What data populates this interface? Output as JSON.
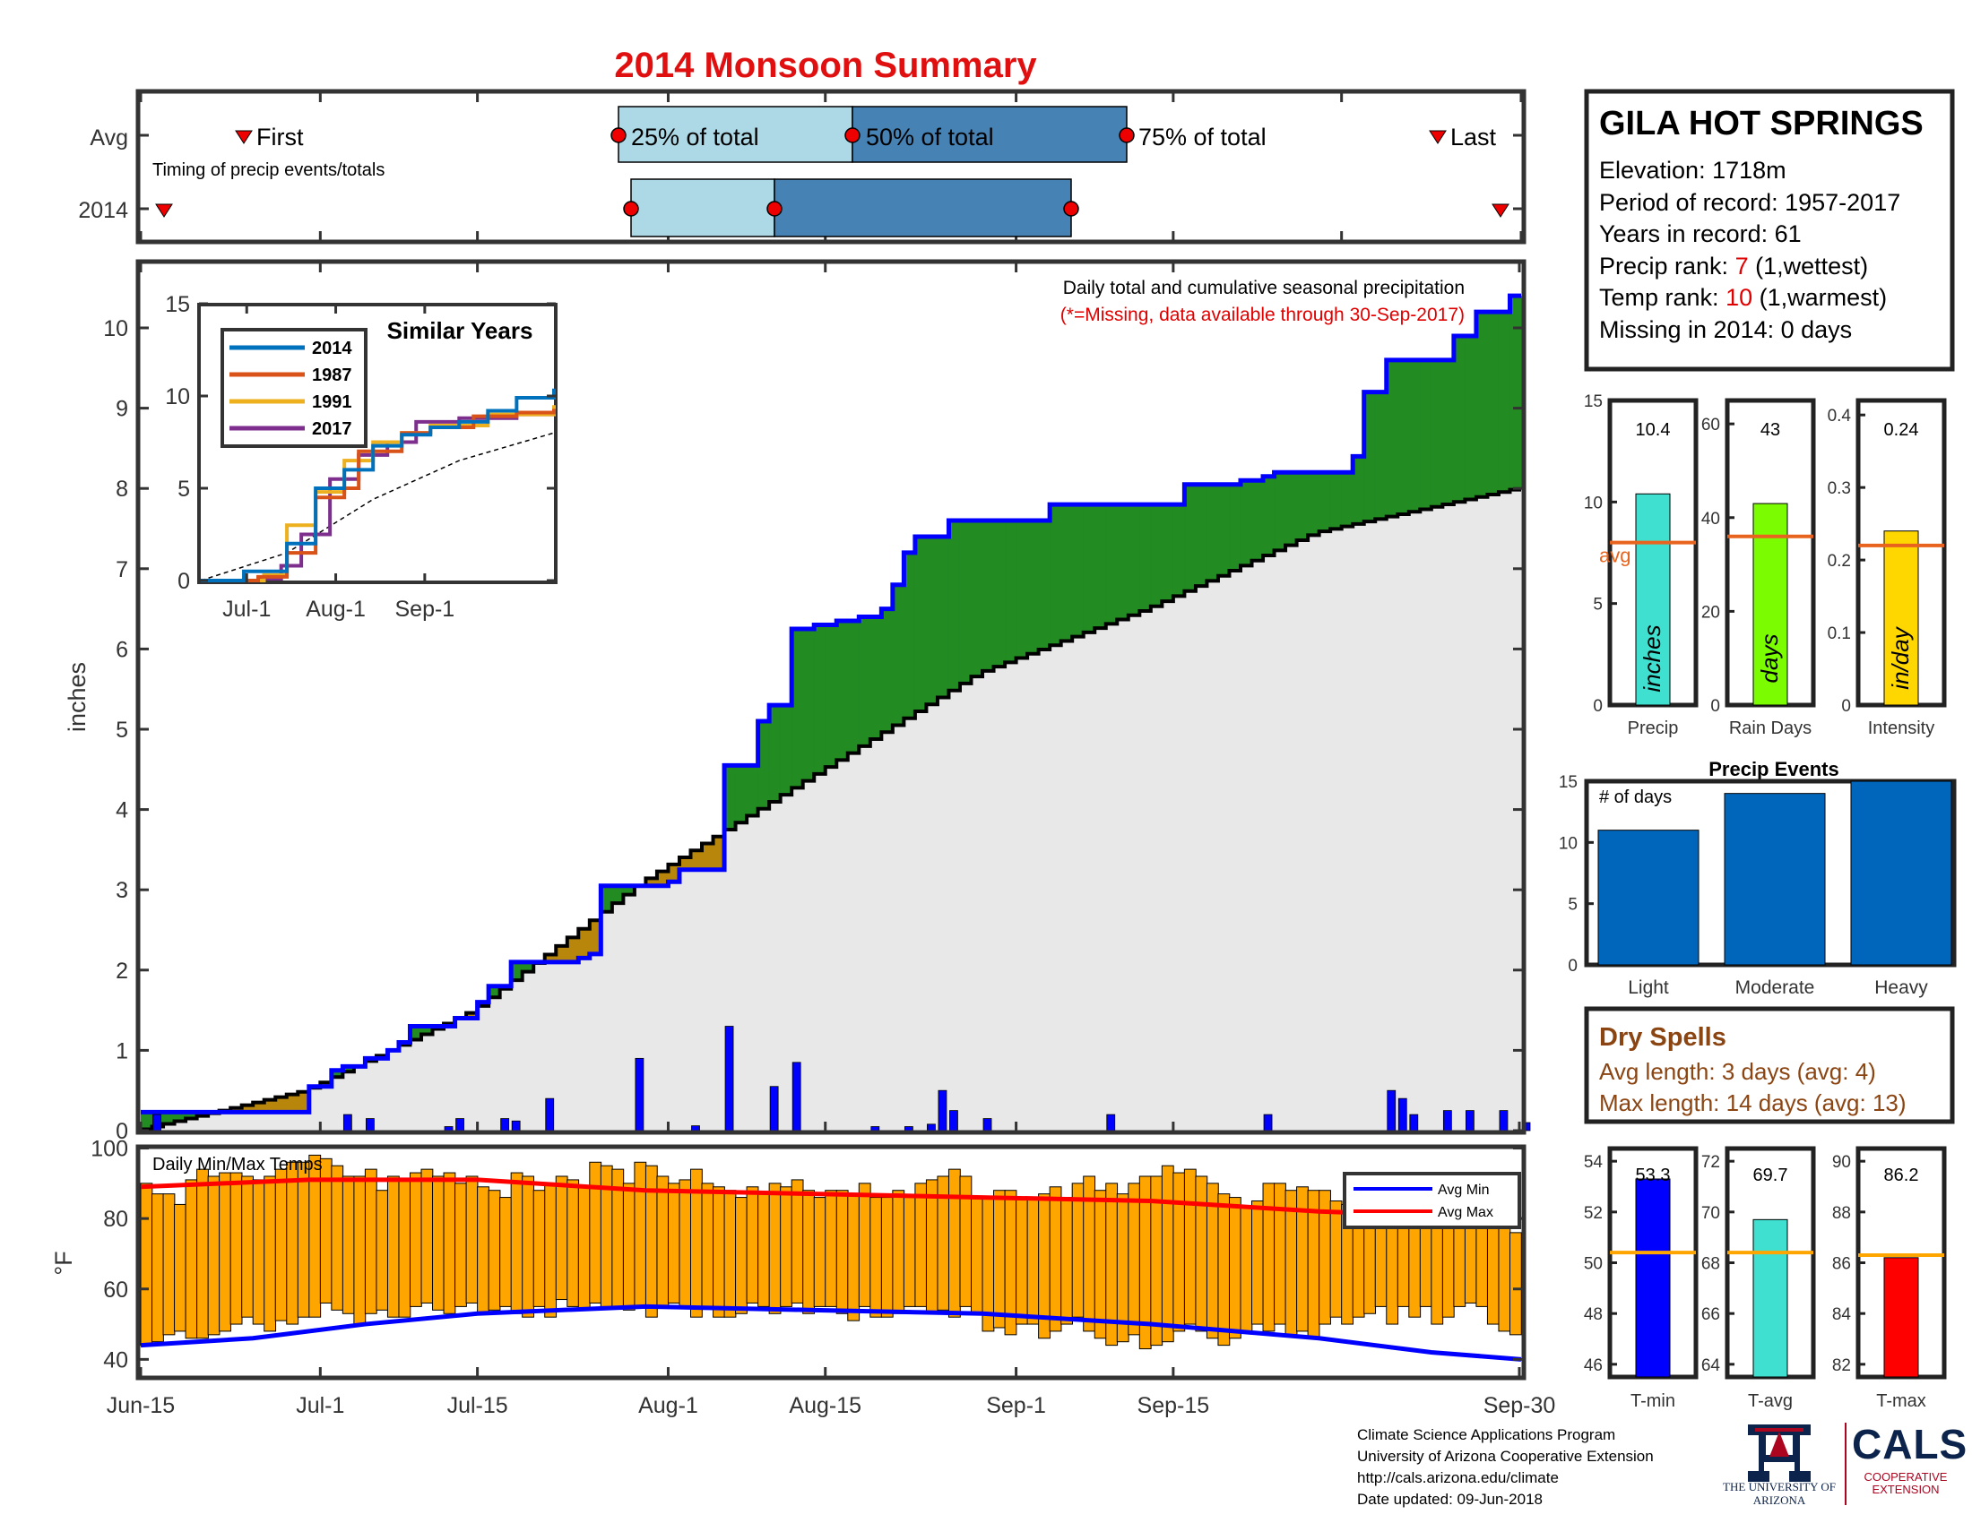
{
  "title": "2014 Monsoon Summary",
  "colors": {
    "title": "#e01010",
    "green": "#228b22",
    "blue": "#0000ff",
    "gray_fill": "#e8e8e8",
    "tan": "#b8860b",
    "light_blue": "#add8e6",
    "steel_blue": "#4682b4",
    "bar_blue": "#0066bb",
    "orange_temp": "#ffa500",
    "avg_line": "#e8641e",
    "temp_avg_line": "#ffa500",
    "rank_red": "#e00000",
    "brown": "#8b4513"
  },
  "timing": {
    "label": "Timing of precip events/totals",
    "row_avg": "Avg",
    "row_year": "2014",
    "first": "First",
    "last": "Last",
    "p25": "25% of total",
    "p50": "50% of total",
    "p75": "75% of total"
  },
  "station": {
    "name": "GILA HOT SPRINGS",
    "elevation": "Elevation: 1718m",
    "period": "Period of record: 1957-2017",
    "years": "Years in record: 61",
    "precip_rank_label": "Precip rank:",
    "precip_rank": "7",
    "precip_rank_note": "(1,wettest)",
    "temp_rank_label": "Temp rank:",
    "temp_rank": "10",
    "temp_rank_note": "(1,warmest)",
    "missing": "Missing in 2014: 0 days"
  },
  "main_chart": {
    "note1": "Daily total and cumulative seasonal precipitation",
    "note2": "(*=Missing, data available through 30-Sep-2017)",
    "ylabel": "inches",
    "yticks": [
      "0",
      "1",
      "2",
      "3",
      "4",
      "5",
      "6",
      "7",
      "8",
      "9",
      "10"
    ],
    "xticks": [
      "Jun-15",
      "Jul-1",
      "Jul-15",
      "Aug-1",
      "Aug-15",
      "Sep-1",
      "Sep-15",
      "Sep-30"
    ]
  },
  "inset": {
    "title": "Similar Years",
    "yticks": [
      "0",
      "5",
      "10",
      "15"
    ],
    "xticks": [
      "Jul-1",
      "Aug-1",
      "Sep-1"
    ],
    "legend": [
      "2014",
      "1987",
      "1991",
      "2017"
    ]
  },
  "small_bars": {
    "precip": {
      "value": "10.4",
      "label": "Precip",
      "unit": "inches",
      "avg_text": "avg",
      "yticks": [
        "0",
        "5",
        "10",
        "15"
      ]
    },
    "rain_days": {
      "value": "43",
      "label": "Rain Days",
      "unit": "days",
      "yticks": [
        "0",
        "20",
        "40",
        "60"
      ]
    },
    "intensity": {
      "value": "0.24",
      "label": "Intensity",
      "unit": "in/day",
      "yticks": [
        "0",
        "0.1",
        "0.2",
        "0.3",
        "0.4"
      ]
    }
  },
  "precip_events": {
    "title": "Precip Events",
    "note": "# of days",
    "yticks": [
      "0",
      "5",
      "10",
      "15"
    ],
    "categories": [
      "Light",
      "Moderate",
      "Heavy"
    ]
  },
  "dry_spells": {
    "title": "Dry Spells",
    "avg_length": "Avg length: 3 days (avg: 4)",
    "max_length": "Max length: 14 days (avg: 13)"
  },
  "temps": {
    "title": "Daily Min/Max Temps",
    "ylabel": "°F",
    "yticks": [
      "40",
      "60",
      "80",
      "100"
    ],
    "legend_min": "Avg Min",
    "legend_max": "Avg Max"
  },
  "temp_bars": {
    "tmin": {
      "value": "53.3",
      "label": "T-min",
      "yticks": [
        "46",
        "48",
        "50",
        "52",
        "54"
      ]
    },
    "tavg": {
      "value": "69.7",
      "label": "T-avg",
      "yticks": [
        "64",
        "66",
        "68",
        "70",
        "72"
      ]
    },
    "tmax": {
      "value": "86.2",
      "label": "T-max",
      "yticks": [
        "82",
        "84",
        "86",
        "88",
        "90"
      ]
    }
  },
  "footer": {
    "line1": "Climate Science Applications Program",
    "line2": "University of Arizona Cooperative Extension",
    "line3": "http://cals.arizona.edu/climate",
    "line4": "Date updated: 09-Jun-2018",
    "ua_logo_text": "THE UNIVERSITY OF ARIZONA",
    "cals_logo_text": "CALS",
    "cals_sub": "COOPERATIVE EXTENSION"
  },
  "chart_data": [
    {
      "type": "area",
      "name": "cumulative",
      "x_range": [
        "Jun-15",
        "Sep-30"
      ],
      "ylim": [
        0,
        10.5
      ],
      "cumulative_2014_points": [
        [
          0,
          0.23
        ],
        [
          14,
          0.23
        ],
        [
          15,
          0.55
        ],
        [
          17,
          0.75
        ],
        [
          18,
          0.8
        ],
        [
          20,
          0.9
        ],
        [
          22,
          1.0
        ],
        [
          23,
          1.1
        ],
        [
          24,
          1.3
        ],
        [
          27,
          1.3
        ],
        [
          28,
          1.4
        ],
        [
          30,
          1.6
        ],
        [
          31,
          1.8
        ],
        [
          32,
          1.8
        ],
        [
          33,
          2.1
        ],
        [
          38,
          2.1
        ],
        [
          39,
          2.15
        ],
        [
          40,
          2.2
        ],
        [
          41,
          3.05
        ],
        [
          47,
          3.1
        ],
        [
          48,
          3.25
        ],
        [
          51,
          3.25
        ],
        [
          52,
          4.55
        ],
        [
          54,
          4.55
        ],
        [
          55,
          5.1
        ],
        [
          56,
          5.3
        ],
        [
          57,
          5.3
        ],
        [
          58,
          6.25
        ],
        [
          60,
          6.3
        ],
        [
          62,
          6.35
        ],
        [
          64,
          6.4
        ],
        [
          66,
          6.5
        ],
        [
          67,
          6.8
        ],
        [
          68,
          7.2
        ],
        [
          69,
          7.4
        ],
        [
          71,
          7.4
        ],
        [
          72,
          7.6
        ],
        [
          80,
          7.6
        ],
        [
          81,
          7.8
        ],
        [
          92,
          7.8
        ],
        [
          93,
          8.05
        ],
        [
          98,
          8.1
        ],
        [
          100,
          8.15
        ],
        [
          101,
          8.2
        ],
        [
          107,
          8.2
        ],
        [
          108,
          8.4
        ],
        [
          109,
          9.2
        ],
        [
          110,
          9.2
        ],
        [
          111,
          9.6
        ],
        [
          116,
          9.6
        ],
        [
          117,
          9.9
        ],
        [
          118,
          9.9
        ],
        [
          119,
          10.2
        ],
        [
          121,
          10.2
        ],
        [
          122,
          10.4
        ],
        [
          123,
          10.4
        ]
      ],
      "average_cumulative_points": [
        [
          0,
          0
        ],
        [
          15,
          0.5
        ],
        [
          30,
          1.5
        ],
        [
          45,
          3.1
        ],
        [
          60,
          4.4
        ],
        [
          75,
          5.7
        ],
        [
          90,
          6.5
        ],
        [
          105,
          7.45
        ],
        [
          123,
          8.0
        ]
      ],
      "daily_precip": [
        [
          1,
          0.2
        ],
        [
          18,
          0.2
        ],
        [
          20,
          0.15
        ],
        [
          27,
          0.05
        ],
        [
          28,
          0.15
        ],
        [
          32,
          0.15
        ],
        [
          33,
          0.12
        ],
        [
          36,
          0.4
        ],
        [
          44,
          0.9
        ],
        [
          49,
          0.06
        ],
        [
          52,
          1.3
        ],
        [
          56,
          0.55
        ],
        [
          58,
          0.85
        ],
        [
          65,
          0.05
        ],
        [
          68,
          0.05
        ],
        [
          70,
          0.08
        ],
        [
          71,
          0.5
        ],
        [
          72,
          0.25
        ],
        [
          75,
          0.15
        ],
        [
          86,
          0.2
        ],
        [
          100,
          0.2
        ],
        [
          111,
          0.5
        ],
        [
          112,
          0.4
        ],
        [
          113,
          0.2
        ],
        [
          116,
          0.25
        ],
        [
          118,
          0.25
        ],
        [
          121,
          0.25
        ],
        [
          123,
          0.1
        ]
      ]
    },
    {
      "type": "line",
      "name": "similar_years",
      "series": [
        {
          "name": "2014",
          "points": [
            [
              0,
              0
            ],
            [
              15,
              0.5
            ],
            [
              30,
              2
            ],
            [
              40,
              5
            ],
            [
              50,
              6
            ],
            [
              60,
              7.3
            ],
            [
              70,
              7.9
            ],
            [
              80,
              8.3
            ],
            [
              90,
              8.6
            ],
            [
              100,
              9.2
            ],
            [
              110,
              9.9
            ],
            [
              123,
              10.4
            ]
          ]
        },
        {
          "name": "1987",
          "points": [
            [
              0,
              0
            ],
            [
              20,
              0.2
            ],
            [
              30,
              1.5
            ],
            [
              40,
              4.5
            ],
            [
              50,
              5
            ],
            [
              55,
              7
            ],
            [
              70,
              8
            ],
            [
              80,
              8.3
            ],
            [
              95,
              8.9
            ],
            [
              110,
              9.1
            ],
            [
              123,
              9.3
            ]
          ]
        },
        {
          "name": "1991",
          "points": [
            [
              0,
              0
            ],
            [
              22,
              0.3
            ],
            [
              30,
              3
            ],
            [
              40,
              4.8
            ],
            [
              50,
              6.5
            ],
            [
              60,
              7.5
            ],
            [
              70,
              8
            ],
            [
              80,
              8.4
            ],
            [
              100,
              9
            ],
            [
              123,
              9.5
            ]
          ]
        },
        {
          "name": "2017",
          "points": [
            [
              0,
              0
            ],
            [
              20,
              0.1
            ],
            [
              28,
              0.8
            ],
            [
              35,
              2.5
            ],
            [
              45,
              5.5
            ],
            [
              55,
              6.8
            ],
            [
              65,
              7.5
            ],
            [
              75,
              8.6
            ],
            [
              90,
              8.8
            ],
            [
              110,
              9
            ],
            [
              123,
              9.2
            ]
          ]
        }
      ],
      "average_points": [
        [
          0,
          0
        ],
        [
          30,
          1.5
        ],
        [
          60,
          4.4
        ],
        [
          90,
          6.5
        ],
        [
          123,
          8
        ]
      ]
    },
    {
      "type": "bar",
      "name": "precip",
      "values": [
        10.4
      ],
      "average": 8.0,
      "ylim": [
        0,
        15
      ]
    },
    {
      "type": "bar",
      "name": "rain_days",
      "values": [
        43
      ],
      "average": 36,
      "ylim": [
        0,
        65
      ]
    },
    {
      "type": "bar",
      "name": "intensity",
      "values": [
        0.24
      ],
      "average": 0.22,
      "ylim": [
        0,
        0.42
      ]
    },
    {
      "type": "bar",
      "name": "precip_events",
      "categories": [
        "Light",
        "Moderate",
        "Heavy"
      ],
      "values": [
        11,
        14,
        15
      ],
      "ylim": [
        0,
        15
      ]
    },
    {
      "type": "bar",
      "name": "daily_temps",
      "x_range": [
        "Jun-15",
        "Sep-30"
      ],
      "ylim": [
        35,
        100
      ],
      "max_values": [
        90,
        87,
        87,
        84,
        91,
        94,
        92,
        93,
        93,
        92,
        91,
        92,
        94,
        96,
        96,
        98,
        97,
        95,
        92,
        92,
        94,
        88,
        92,
        91,
        93,
        94,
        92,
        93,
        90,
        92,
        89,
        88,
        86,
        93,
        92,
        88,
        90,
        92,
        91,
        89,
        96,
        95,
        94,
        90,
        96,
        95,
        92,
        90,
        91,
        94,
        90,
        89,
        88,
        86,
        89,
        87,
        90,
        89,
        91,
        88,
        86,
        88,
        88,
        87,
        90,
        86,
        86,
        88,
        86,
        90,
        91,
        92,
        94,
        92,
        86,
        86,
        88,
        88,
        86,
        86,
        87,
        89,
        86,
        90,
        92,
        88,
        90,
        87,
        90,
        92,
        92,
        95,
        93,
        94,
        92,
        90,
        87,
        86,
        83,
        85,
        90,
        90,
        88,
        89,
        88,
        88,
        85,
        84,
        82,
        87,
        80,
        80,
        86,
        87,
        85,
        86,
        84,
        80,
        82,
        84,
        80,
        78,
        76
      ],
      "min_values": [
        44,
        45,
        47,
        48,
        46,
        46,
        47,
        48,
        50,
        52,
        50,
        48,
        51,
        50,
        52,
        52,
        56,
        54,
        53,
        50,
        53,
        54,
        52,
        52,
        55,
        56,
        54,
        53,
        55,
        56,
        53,
        54,
        55,
        53,
        52,
        55,
        52,
        57,
        55,
        54,
        56,
        55,
        55,
        54,
        55,
        52,
        55,
        56,
        55,
        52,
        55,
        52,
        52,
        53,
        56,
        55,
        53,
        55,
        56,
        53,
        55,
        55,
        53,
        51,
        55,
        52,
        52,
        53,
        55,
        55,
        53,
        54,
        52,
        55,
        53,
        48,
        49,
        47,
        50,
        50,
        46,
        48,
        50,
        52,
        48,
        46,
        44,
        45,
        47,
        43,
        44,
        45,
        48,
        50,
        48,
        46,
        44,
        46,
        48,
        50,
        48,
        50,
        47,
        48,
        46,
        50,
        52,
        50,
        52,
        53,
        55,
        50,
        55,
        52,
        55,
        50,
        52,
        55,
        56,
        55,
        50,
        48,
        47
      ],
      "avg_max": [
        [
          0,
          89
        ],
        [
          15,
          91
        ],
        [
          30,
          91
        ],
        [
          45,
          88
        ],
        [
          60,
          87
        ],
        [
          75,
          86
        ],
        [
          90,
          85
        ],
        [
          105,
          82
        ],
        [
          123,
          80
        ]
      ],
      "avg_min": [
        [
          0,
          44
        ],
        [
          10,
          46
        ],
        [
          20,
          50
        ],
        [
          30,
          53
        ],
        [
          45,
          55
        ],
        [
          60,
          54
        ],
        [
          75,
          53
        ],
        [
          90,
          50
        ],
        [
          105,
          46
        ],
        [
          115,
          42
        ],
        [
          123,
          40
        ]
      ]
    },
    {
      "type": "bar",
      "name": "temp_summary",
      "categories": [
        "T-min",
        "T-avg",
        "T-max"
      ],
      "values": [
        53.3,
        69.7,
        86.2
      ],
      "averages": [
        50.4,
        68.4,
        86.3
      ],
      "ylims": [
        [
          45.5,
          54.5
        ],
        [
          63.5,
          72.5
        ],
        [
          81.5,
          90.5
        ]
      ]
    }
  ]
}
